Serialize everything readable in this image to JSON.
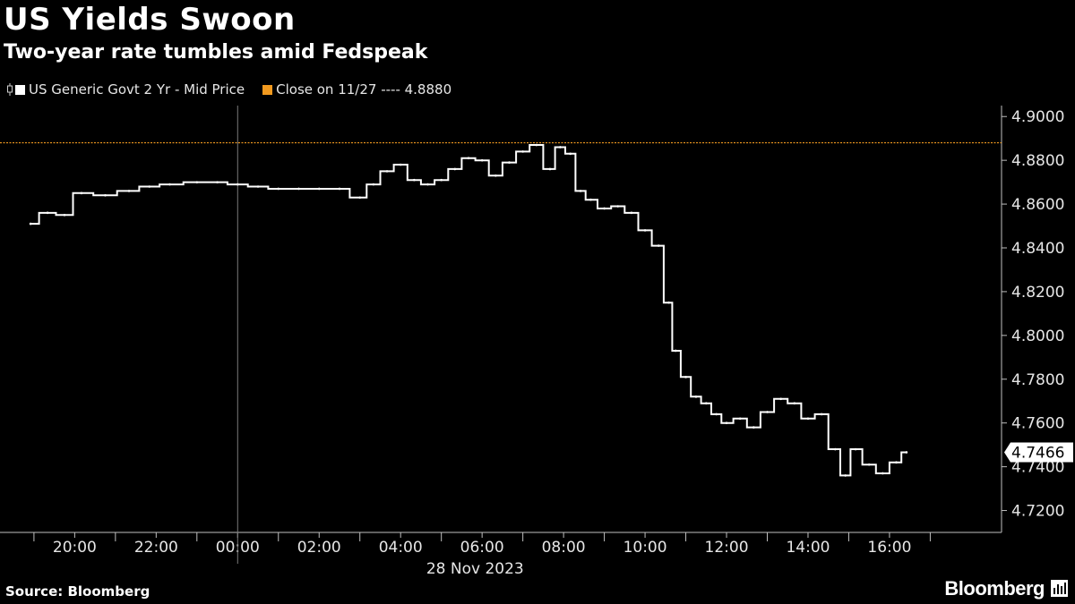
{
  "title": "US Yields Swoon",
  "subtitle": "Two-year rate tumbles amid Fedspeak",
  "legend": [
    {
      "label": "US Generic Govt 2 Yr - Mid Price",
      "color": "#ffffff",
      "icon": "candle-icon"
    },
    {
      "label": "Close on 11/27 ---- 4.8880",
      "color": "#f29a1f",
      "icon": "square-icon"
    }
  ],
  "source": "Source: Bloomberg",
  "brand": "Bloomberg",
  "chart_data": {
    "type": "line",
    "series": [
      {
        "name": "US Generic Govt 2 Yr - Mid Price",
        "color": "#ffffff",
        "x": [
          "18:55",
          "19:20",
          "19:45",
          "20:10",
          "20:45",
          "21:20",
          "21:50",
          "22:20",
          "23:00",
          "23:30",
          "00:00",
          "00:30",
          "01:00",
          "01:30",
          "02:00",
          "02:30",
          "03:00",
          "03:20",
          "03:40",
          "04:00",
          "04:20",
          "04:40",
          "05:00",
          "05:20",
          "05:40",
          "06:00",
          "06:20",
          "06:40",
          "07:00",
          "07:20",
          "07:40",
          "07:55",
          "08:10",
          "08:25",
          "08:40",
          "09:00",
          "09:20",
          "09:40",
          "10:00",
          "10:20",
          "10:35",
          "10:45",
          "11:00",
          "11:15",
          "11:30",
          "11:45",
          "12:00",
          "12:20",
          "12:40",
          "13:00",
          "13:20",
          "13:40",
          "14:00",
          "14:20",
          "14:40",
          "14:55",
          "15:10",
          "15:30",
          "15:50",
          "16:10",
          "16:25"
        ],
        "values": [
          4.851,
          4.856,
          4.855,
          4.865,
          4.864,
          4.866,
          4.868,
          4.869,
          4.87,
          4.87,
          4.869,
          4.868,
          4.867,
          4.867,
          4.867,
          4.867,
          4.863,
          4.869,
          4.875,
          4.878,
          4.871,
          4.869,
          4.871,
          4.876,
          4.881,
          4.88,
          4.873,
          4.879,
          4.884,
          4.887,
          4.876,
          4.886,
          4.883,
          4.866,
          4.862,
          4.858,
          4.859,
          4.856,
          4.848,
          4.841,
          4.815,
          4.793,
          4.781,
          4.772,
          4.769,
          4.764,
          4.76,
          4.762,
          4.758,
          4.765,
          4.771,
          4.769,
          4.762,
          4.764,
          4.748,
          4.736,
          4.748,
          4.741,
          4.737,
          4.742,
          4.7466
        ]
      }
    ],
    "reference_line": {
      "label": "Close on 11/27",
      "value": 4.888,
      "color": "#f29a1f",
      "style": "dotted"
    },
    "last_value_label": "4.7466",
    "y_ticks": [
      "4.9000",
      "4.8800",
      "4.8600",
      "4.8400",
      "4.8200",
      "4.8000",
      "4.7800",
      "4.7600",
      "4.7400",
      "4.7200"
    ],
    "x_ticks": [
      "20:00",
      "22:00",
      "00:00",
      "02:00",
      "04:00",
      "06:00",
      "08:00",
      "10:00",
      "12:00",
      "14:00",
      "16:00"
    ],
    "xlabel": "28 Nov 2023",
    "ylim": [
      4.71,
      4.905
    ],
    "xlim": [
      "18:00",
      "18:45"
    ],
    "y_axis_position": "right",
    "grid": false
  }
}
